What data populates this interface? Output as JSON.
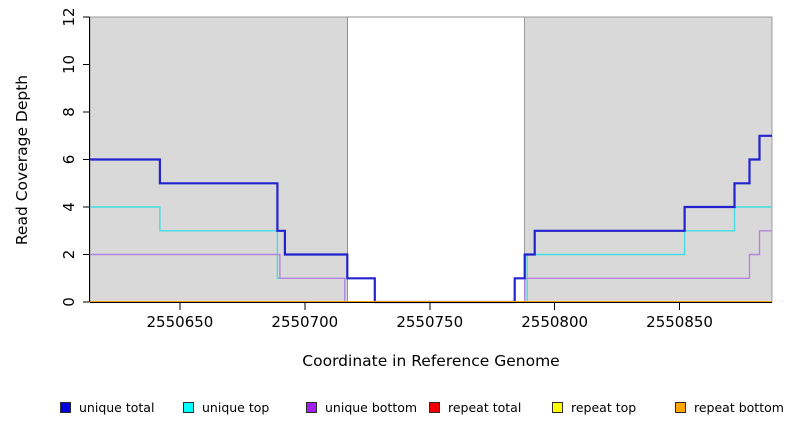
{
  "chart_data": {
    "type": "line",
    "subtype": "step-after",
    "title": "",
    "xlabel": "Coordinate in Reference Genome",
    "ylabel": "Read Coverage Depth",
    "xlim": [
      2550614,
      2550887
    ],
    "ylim": [
      0,
      12
    ],
    "xticks": [
      2550650,
      2550700,
      2550750,
      2550800,
      2550850
    ],
    "yticks": [
      0,
      2,
      4,
      6,
      8,
      10,
      12
    ],
    "grid": "off",
    "legend_position": "bottom",
    "background_color": "#ffffff",
    "shaded_regions": [
      {
        "name": "left-shaded-region",
        "x0": 2550614,
        "x1": 2550717,
        "fill": "#d9d9d9",
        "stroke": "#9c9c9c"
      },
      {
        "name": "middle-gap-region",
        "x0": 2550717,
        "x1": 2550788,
        "fill": "#ffffff",
        "stroke": "#8f8f8f"
      },
      {
        "name": "right-shaded-region",
        "x0": 2550788,
        "x1": 2550887,
        "fill": "#d9d9d9",
        "stroke": "#9c9c9c"
      }
    ],
    "series": [
      {
        "name": "unique total",
        "line_color": "#2222cf",
        "legend_fill": "#0000e0",
        "line_width": 2.2,
        "points": [
          [
            2550614,
            6
          ],
          [
            2550642,
            5
          ],
          [
            2550689,
            3
          ],
          [
            2550692,
            2
          ],
          [
            2550717,
            1
          ],
          [
            2550728,
            0
          ],
          [
            2550784,
            1
          ],
          [
            2550788,
            2
          ],
          [
            2550792,
            3
          ],
          [
            2550852,
            4
          ],
          [
            2550872,
            5
          ],
          [
            2550878,
            6
          ],
          [
            2550882,
            7
          ],
          [
            2550887,
            7
          ]
        ]
      },
      {
        "name": "unique top",
        "line_color": "#44dde6",
        "legend_fill": "#00ffff",
        "line_width": 1.4,
        "points": [
          [
            2550614,
            4
          ],
          [
            2550642,
            3
          ],
          [
            2550689,
            1
          ],
          [
            2550716,
            0
          ],
          [
            2550789,
            2
          ],
          [
            2550852,
            3
          ],
          [
            2550872,
            4
          ],
          [
            2550887,
            4
          ]
        ]
      },
      {
        "name": "unique bottom",
        "line_color": "#b583dd",
        "legend_fill": "#a020f0",
        "line_width": 1.4,
        "points": [
          [
            2550614,
            2
          ],
          [
            2550690,
            1
          ],
          [
            2550716,
            0
          ],
          [
            2550788,
            1
          ],
          [
            2550878,
            2
          ],
          [
            2550882,
            3
          ],
          [
            2550887,
            3
          ]
        ]
      },
      {
        "name": "repeat total",
        "line_color": "#ee1010",
        "legend_fill": "#ee0000",
        "line_width": 1.4,
        "points": [
          [
            2550614,
            0
          ],
          [
            2550887,
            0
          ]
        ]
      },
      {
        "name": "repeat top",
        "line_color": "#ffff00",
        "legend_fill": "#ffff00",
        "line_width": 1.4,
        "points": [
          [
            2550614,
            0
          ],
          [
            2550887,
            0
          ]
        ]
      },
      {
        "name": "repeat bottom",
        "line_color": "#ff9d00",
        "legend_fill": "#ffa500",
        "line_width": 2,
        "points": [
          [
            2550614,
            0
          ],
          [
            2550887,
            0
          ]
        ]
      }
    ]
  }
}
